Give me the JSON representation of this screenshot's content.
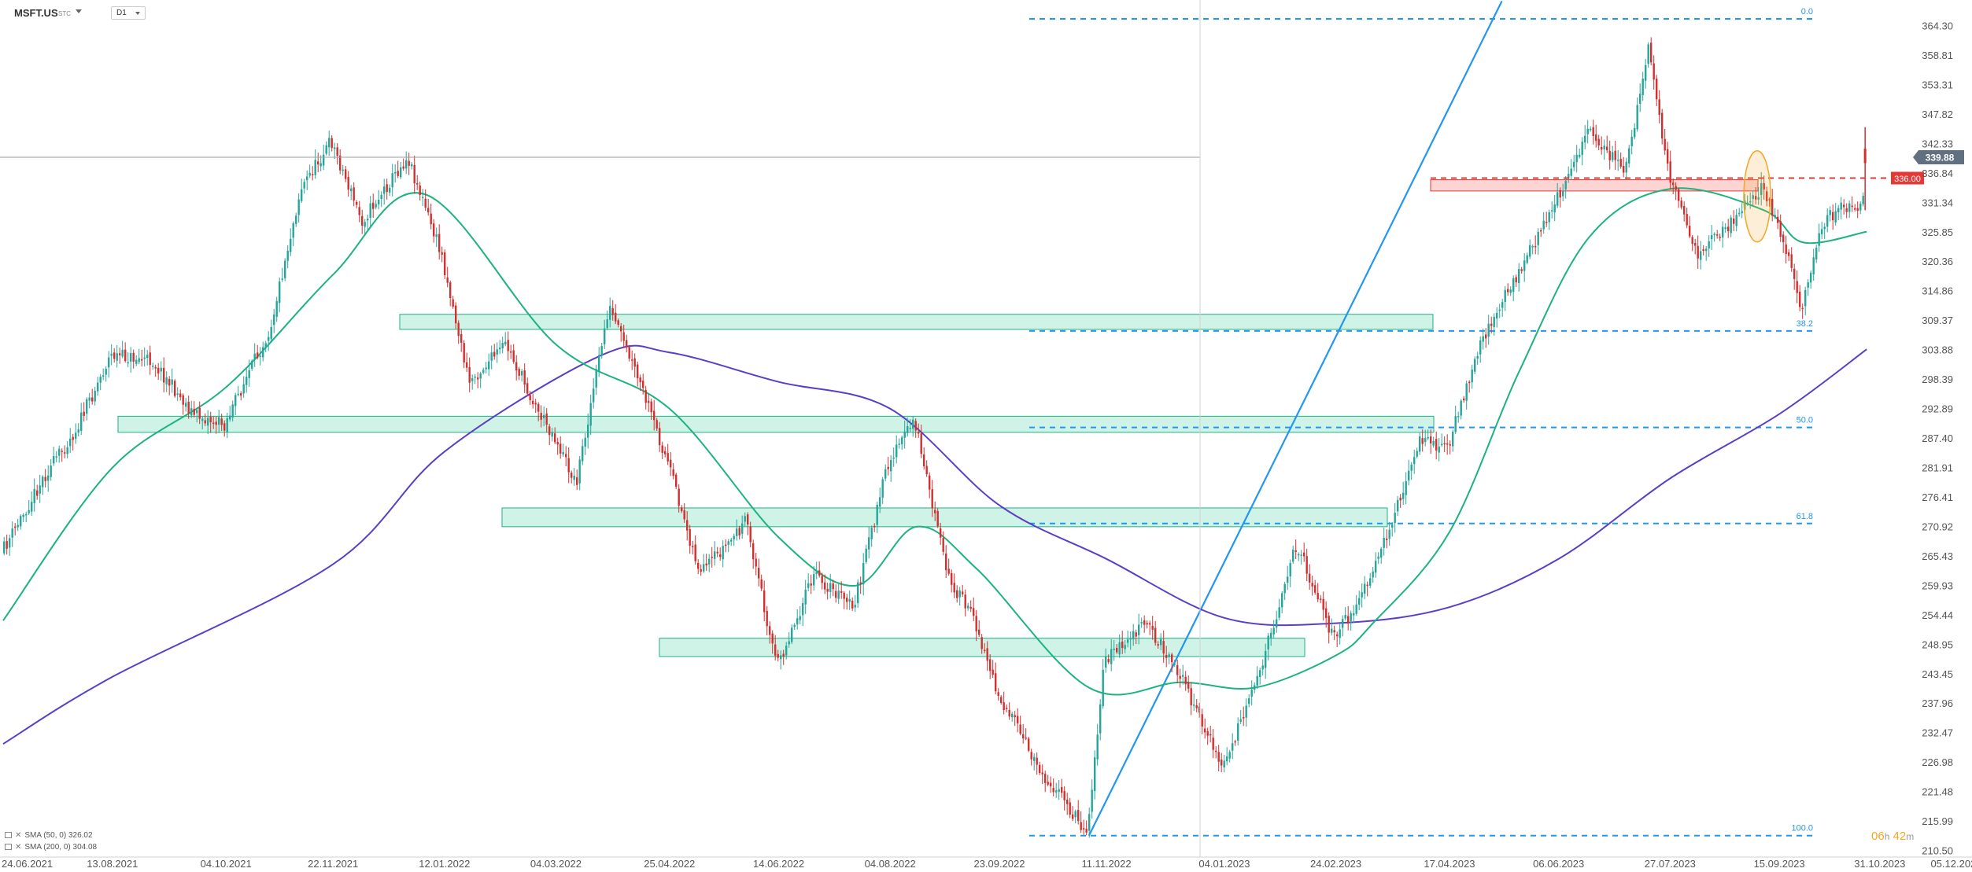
{
  "header": {
    "symbol": "MSFT.US",
    "symbol_sub": "STC",
    "timeframe": "D1"
  },
  "legend": [
    {
      "label": "SMA (50, 0) 326.02"
    },
    {
      "label": "SMA (200, 0) 304.08"
    }
  ],
  "countdown": {
    "h": "06",
    "h_unit": "h",
    "m": "42",
    "m_unit": "m"
  },
  "colors": {
    "up": "#26a69a",
    "down": "#d32f2f",
    "sma50": "#1db37f",
    "sma200": "#5b3ec8",
    "fib": "#2196f3",
    "zone_fill": "rgba(38,200,140,0.22)",
    "zone_border": "#1db37f",
    "resistance_fill": "rgba(239,83,80,0.25)",
    "resistance_line": "#e53935",
    "highlight": "#f5a623",
    "price_line": "#9e9e9e"
  },
  "chart_data": {
    "type": "candlestick",
    "instrument": "MSFT.US",
    "timeframe": "D1",
    "x_tick_labels": [
      "24.06.2021",
      "13.08.2021",
      "04.10.2021",
      "22.11.2021",
      "12.01.2022",
      "04.03.2022",
      "25.04.2022",
      "14.06.2022",
      "04.08.2022",
      "23.09.2022",
      "11.11.2022",
      "04.01.2023",
      "24.02.2023",
      "17.04.2023",
      "06.06.2023",
      "27.07.2023",
      "15.09.2023",
      "31.10.2023",
      "05.12.2023"
    ],
    "y_tick_labels": [
      364.3,
      358.81,
      353.31,
      347.82,
      342.33,
      336.84,
      331.34,
      325.85,
      320.36,
      314.86,
      309.37,
      303.88,
      298.39,
      292.89,
      287.4,
      281.91,
      276.41,
      270.92,
      265.43,
      259.93,
      254.44,
      248.95,
      243.45,
      237.96,
      232.47,
      226.98,
      221.48,
      215.99,
      210.5
    ],
    "ylim": [
      208.5,
      367.8
    ],
    "current_price": 339.88,
    "marked_price": 336.0,
    "price_path": [
      {
        "date": "24.06.2021",
        "price": 266.0
      },
      {
        "date": "13.07.2021",
        "price": 280.0
      },
      {
        "date": "28.07.2021",
        "price": 289.0
      },
      {
        "date": "13.08.2021",
        "price": 303.0
      },
      {
        "date": "01.09.2021",
        "price": 302.0
      },
      {
        "date": "20.09.2021",
        "price": 292.0
      },
      {
        "date": "04.10.2021",
        "price": 290.0
      },
      {
        "date": "25.10.2021",
        "price": 308.0
      },
      {
        "date": "08.11.2021",
        "price": 334.0
      },
      {
        "date": "22.11.2021",
        "price": 343.0
      },
      {
        "date": "06.12.2021",
        "price": 328.0
      },
      {
        "date": "27.12.2021",
        "price": 340.0
      },
      {
        "date": "12.01.2022",
        "price": 321.0
      },
      {
        "date": "24.01.2022",
        "price": 298.0
      },
      {
        "date": "10.02.2022",
        "price": 305.0
      },
      {
        "date": "24.02.2022",
        "price": 293.0
      },
      {
        "date": "04.03.2022",
        "price": 288.0
      },
      {
        "date": "14.03.2022",
        "price": 279.0
      },
      {
        "date": "29.03.2022",
        "price": 312.0
      },
      {
        "date": "12.04.2022",
        "price": 298.0
      },
      {
        "date": "25.04.2022",
        "price": 283.0
      },
      {
        "date": "10.05.2022",
        "price": 262.0
      },
      {
        "date": "31.05.2022",
        "price": 272.0
      },
      {
        "date": "14.06.2022",
        "price": 245.0
      },
      {
        "date": "01.07.2022",
        "price": 262.0
      },
      {
        "date": "19.07.2022",
        "price": 256.0
      },
      {
        "date": "04.08.2022",
        "price": 283.0
      },
      {
        "date": "16.08.2022",
        "price": 291.0
      },
      {
        "date": "31.08.2022",
        "price": 262.0
      },
      {
        "date": "13.09.2022",
        "price": 253.0
      },
      {
        "date": "23.09.2022",
        "price": 240.0
      },
      {
        "date": "12.10.2022",
        "price": 226.0
      },
      {
        "date": "03.11.2022",
        "price": 214.0
      },
      {
        "date": "11.11.2022",
        "price": 246.0
      },
      {
        "date": "30.11.2022",
        "price": 253.0
      },
      {
        "date": "15.12.2022",
        "price": 244.0
      },
      {
        "date": "04.01.2023",
        "price": 226.0
      },
      {
        "date": "18.01.2023",
        "price": 240.0
      },
      {
        "date": "07.02.2023",
        "price": 268.0
      },
      {
        "date": "24.02.2023",
        "price": 250.0
      },
      {
        "date": "13.03.2023",
        "price": 261.0
      },
      {
        "date": "04.04.2023",
        "price": 287.0
      },
      {
        "date": "17.04.2023",
        "price": 286.0
      },
      {
        "date": "04.05.2023",
        "price": 307.0
      },
      {
        "date": "19.05.2023",
        "price": 318.0
      },
      {
        "date": "06.06.2023",
        "price": 332.0
      },
      {
        "date": "20.06.2023",
        "price": 345.0
      },
      {
        "date": "07.07.2023",
        "price": 337.0
      },
      {
        "date": "18.07.2023",
        "price": 360.0
      },
      {
        "date": "27.07.2023",
        "price": 337.0
      },
      {
        "date": "09.08.2023",
        "price": 322.0
      },
      {
        "date": "25.08.2023",
        "price": 328.0
      },
      {
        "date": "08.09.2023",
        "price": 334.0
      },
      {
        "date": "15.09.2023",
        "price": 328.0
      },
      {
        "date": "26.09.2023",
        "price": 312.0
      },
      {
        "date": "06.10.2023",
        "price": 328.0
      },
      {
        "date": "17.10.2023",
        "price": 331.0
      },
      {
        "date": "24.10.2023",
        "price": 330.0
      },
      {
        "date": "25.10.2023",
        "price": 339.88
      }
    ],
    "sma50_path": [
      {
        "date": "24.06.2021",
        "price": 253.5
      },
      {
        "date": "13.08.2021",
        "price": 282.0
      },
      {
        "date": "04.10.2021",
        "price": 297.0
      },
      {
        "date": "22.11.2021",
        "price": 318.0
      },
      {
        "date": "03.01.2022",
        "price": 333.0
      },
      {
        "date": "04.03.2022",
        "price": 305.0
      },
      {
        "date": "25.04.2022",
        "price": 293.0
      },
      {
        "date": "14.06.2022",
        "price": 269.0
      },
      {
        "date": "19.07.2022",
        "price": 260.0
      },
      {
        "date": "16.08.2022",
        "price": 271.0
      },
      {
        "date": "13.09.2022",
        "price": 263.0
      },
      {
        "date": "03.11.2022",
        "price": 241.0
      },
      {
        "date": "15.12.2022",
        "price": 242.0
      },
      {
        "date": "18.01.2023",
        "price": 241.0
      },
      {
        "date": "24.02.2023",
        "price": 247.0
      },
      {
        "date": "13.03.2023",
        "price": 253.0
      },
      {
        "date": "17.04.2023",
        "price": 270.0
      },
      {
        "date": "19.05.2023",
        "price": 300.0
      },
      {
        "date": "20.06.2023",
        "price": 325.0
      },
      {
        "date": "27.07.2023",
        "price": 334.0
      },
      {
        "date": "08.09.2023",
        "price": 330.0
      },
      {
        "date": "26.09.2023",
        "price": 324.0
      },
      {
        "date": "25.10.2023",
        "price": 326.02
      }
    ],
    "sma200_path": [
      {
        "date": "24.06.2021",
        "price": 230.5
      },
      {
        "date": "13.08.2021",
        "price": 243.0
      },
      {
        "date": "22.11.2021",
        "price": 264.0
      },
      {
        "date": "12.01.2022",
        "price": 285.0
      },
      {
        "date": "25.03.2022",
        "price": 303.0
      },
      {
        "date": "25.04.2022",
        "price": 303.5
      },
      {
        "date": "14.06.2022",
        "price": 298.0
      },
      {
        "date": "04.08.2022",
        "price": 293.0
      },
      {
        "date": "23.09.2022",
        "price": 275.0
      },
      {
        "date": "11.11.2022",
        "price": 265.0
      },
      {
        "date": "04.01.2023",
        "price": 254.0
      },
      {
        "date": "24.02.2023",
        "price": 253.0
      },
      {
        "date": "17.04.2023",
        "price": 256.0
      },
      {
        "date": "06.06.2023",
        "price": 265.0
      },
      {
        "date": "27.07.2023",
        "price": 280.0
      },
      {
        "date": "15.09.2023",
        "price": 292.0
      },
      {
        "date": "25.10.2023",
        "price": 304.08
      }
    ],
    "fibonacci": {
      "high": 365.7,
      "low": 213.4,
      "levels": [
        {
          "label": "0.0",
          "price": 365.7
        },
        {
          "label": "38.2",
          "price": 307.5
        },
        {
          "label": "50.0",
          "price": 289.5
        },
        {
          "label": "61.8",
          "price": 271.6
        },
        {
          "label": "100.0",
          "price": 213.4
        }
      ]
    },
    "support_zones": [
      {
        "price_low": 307.8,
        "price_high": 310.6
      },
      {
        "price_low": 288.6,
        "price_high": 291.6
      },
      {
        "price_low": 271.0,
        "price_high": 274.5
      },
      {
        "price_low": 246.8,
        "price_high": 250.2
      }
    ],
    "resistance_zone": {
      "price_low": 333.6,
      "price_high": 335.7
    },
    "trendline": {
      "from": {
        "date": "03.11.2022",
        "price": 213.4
      },
      "to": {
        "date": "11.05.2023",
        "price": 369.0
      }
    }
  }
}
